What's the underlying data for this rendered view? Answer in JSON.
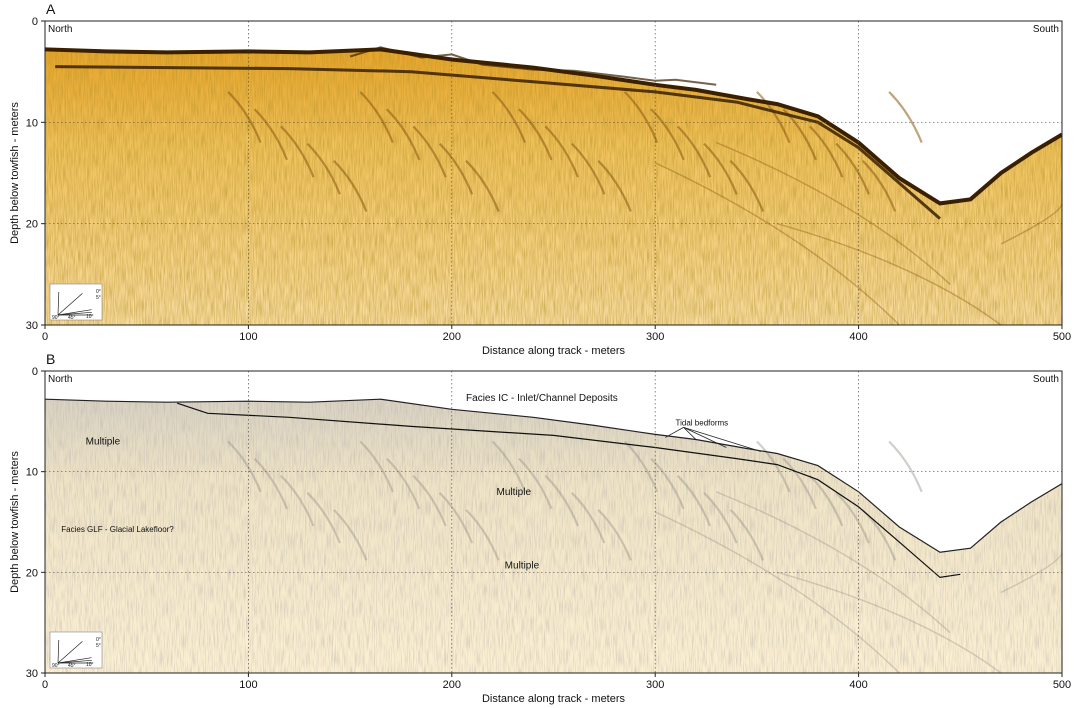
{
  "chart_data": [
    {
      "type": "area",
      "panel_label": "A",
      "xlabel": "Distance along track - meters",
      "ylabel": "Depth below towfish - meters",
      "xlim": [
        0,
        500
      ],
      "ylim": [
        0,
        30
      ],
      "y_inverted": true,
      "xticks": [
        "0",
        "100",
        "200",
        "300",
        "400",
        "500"
      ],
      "yticks": [
        "0",
        "10",
        "20",
        "30"
      ],
      "grid": true,
      "left_label": "North",
      "right_label": "South",
      "colors": {
        "profile_light": "#f8dca0",
        "profile_mid": "#e8b040",
        "reflector": "#3a2000"
      },
      "seafloor": {
        "x": [
          0,
          30,
          60,
          100,
          130,
          165,
          200,
          240,
          270,
          300,
          320,
          345,
          360,
          380,
          400,
          420,
          440,
          455,
          470,
          485,
          500
        ],
        "y": [
          2.8,
          3.0,
          3.1,
          3.0,
          3.1,
          2.8,
          3.8,
          4.6,
          5.4,
          6.3,
          6.8,
          7.7,
          8.2,
          9.4,
          12.0,
          15.5,
          18.0,
          17.6,
          15.0,
          13.0,
          11.2
        ]
      },
      "reflectors": [
        {
          "x": [
            5,
            60,
            120,
            180,
            240,
            300,
            340,
            380,
            400,
            420,
            440
          ],
          "y": [
            4.5,
            4.6,
            4.7,
            5.0,
            6.0,
            7.0,
            8.0,
            10.0,
            12.5,
            16.0,
            19.5
          ]
        }
      ],
      "bedforms": {
        "x": [
          150,
          165,
          185,
          200,
          215,
          240,
          260,
          285,
          300,
          310,
          330
        ],
        "y": [
          3.5,
          2.6,
          3.6,
          3.3,
          4.3,
          4.8,
          4.9,
          5.5,
          5.9,
          5.8,
          6.3
        ]
      },
      "fan_labels": [
        "0°",
        "5°",
        "10°",
        "45°",
        "90°"
      ]
    },
    {
      "type": "area",
      "panel_label": "B",
      "xlabel": "Distance along track - meters",
      "ylabel": "Depth below towfish - meters",
      "xlim": [
        0,
        500
      ],
      "ylim": [
        0,
        30
      ],
      "y_inverted": true,
      "xticks": [
        "0",
        "100",
        "200",
        "300",
        "400",
        "500"
      ],
      "yticks": [
        "0",
        "10",
        "20",
        "30"
      ],
      "grid": true,
      "left_label": "North",
      "right_label": "South",
      "colors": {
        "profile_light": "#fbeed0",
        "profile_mid": "#c9c3b5",
        "interpretation": "#111111"
      },
      "seafloor": {
        "x": [
          0,
          30,
          60,
          100,
          130,
          165,
          200,
          240,
          270,
          300,
          320,
          345,
          360,
          380,
          400,
          420,
          440,
          455,
          470,
          485,
          500
        ],
        "y": [
          2.8,
          3.0,
          3.1,
          3.0,
          3.1,
          2.8,
          3.8,
          4.6,
          5.4,
          6.3,
          6.8,
          7.7,
          8.2,
          9.4,
          12.0,
          15.5,
          18.0,
          17.6,
          15.0,
          13.0,
          11.2
        ]
      },
      "interpreted_boundary": {
        "x": [
          65,
          80,
          120,
          180,
          250,
          300,
          340,
          360,
          380,
          400,
          420,
          440,
          450
        ],
        "y": [
          3.2,
          4.2,
          4.6,
          5.5,
          6.4,
          7.6,
          8.7,
          9.3,
          10.8,
          13.5,
          17.0,
          20.5,
          20.2
        ]
      },
      "annotations": [
        {
          "text": "Facies IC - Inlet/Channel Deposits",
          "x": 207,
          "y": 3.0,
          "size": "large"
        },
        {
          "text": "Tidal bedforms",
          "x": 310,
          "y": 5.4,
          "size": "small"
        },
        {
          "text": "Multiple",
          "x": 20,
          "y": 7.3,
          "size": "normal"
        },
        {
          "text": "Multiple",
          "x": 222,
          "y": 12.3,
          "size": "normal"
        },
        {
          "text": "Multiple",
          "x": 226,
          "y": 19.6,
          "size": "normal"
        },
        {
          "text": "Facies GLF - Glacial Lakefloor?",
          "x": 8,
          "y": 16.0,
          "size": "small"
        }
      ],
      "fan_labels": [
        "0°",
        "5°",
        "10°",
        "45°",
        "90°"
      ]
    }
  ]
}
